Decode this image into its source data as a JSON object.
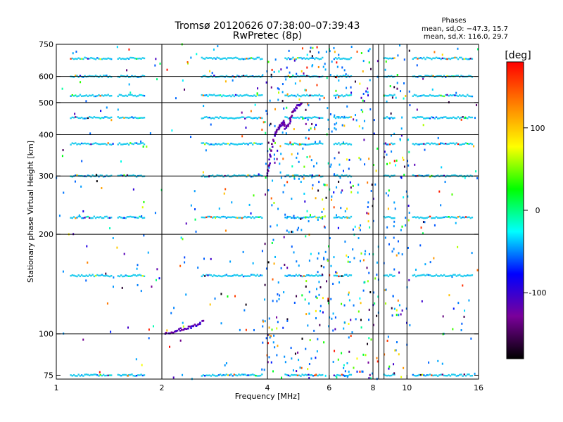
{
  "chart_data": {
    "type": "scatter",
    "title": "Tromsø 20120626 07:38:00–07:39:43",
    "subtitle": "RwPretec (8p)",
    "xlabel": "Frequency [MHz]",
    "ylabel": "Stationary phase Virtual Height [km]",
    "x_scale": "log",
    "y_scale": "log",
    "xlim": [
      1,
      16
    ],
    "ylim": [
      73,
      750
    ],
    "x_ticks": [
      1,
      2,
      4,
      6,
      8,
      10,
      16
    ],
    "y_ticks": [
      75,
      100,
      200,
      300,
      400,
      500,
      600,
      750
    ],
    "x_grid": [
      2,
      4,
      6,
      8,
      10
    ],
    "y_grid": [
      100,
      200,
      300,
      400,
      500,
      600
    ],
    "grid": true,
    "excluded_band_mhz": [
      8.3,
      8.6
    ],
    "phases_legend": {
      "heading": "Phases",
      "line_o": "mean, sd,O: −47.3, 15.7",
      "line_x": "mean, sd,X: 116.0, 29.7"
    },
    "colorbar": {
      "label": "[deg]",
      "range": [
        -180,
        180
      ],
      "ticks": [
        100,
        0,
        -100
      ],
      "colors": [
        "#000000",
        "#7a009a",
        "#0000ff",
        "#00ffff",
        "#00ff00",
        "#ffff00",
        "#ff8000",
        "#ff0000"
      ]
    },
    "dominant_phase_color": "#22ccee",
    "heavy_rows_km": [
      680,
      600,
      525,
      450,
      375,
      300,
      225,
      150,
      75
    ],
    "heavy_row_bands_mhz": [
      [
        1.1,
        1.45
      ],
      [
        1.5,
        1.8
      ],
      [
        2.6,
        3.9
      ],
      [
        4.5,
        5.8
      ],
      [
        6.2,
        7.0
      ],
      [
        8.6,
        9.3
      ],
      [
        10.4,
        15.5
      ]
    ],
    "o_trace": {
      "phase_deg": -110,
      "x_mhz": [
        2.05,
        2.15,
        2.25,
        2.35,
        2.45,
        2.55,
        2.65
      ],
      "y_km": [
        101,
        101.5,
        103,
        104,
        105,
        107,
        110
      ]
    },
    "f_trace": {
      "phase_deg": -120,
      "x_mhz": [
        4.0,
        4.05,
        4.1,
        4.2,
        4.3,
        4.4,
        4.45,
        4.5,
        4.6,
        4.7,
        4.8,
        4.9,
        5.0
      ],
      "y_km": [
        300,
        330,
        360,
        400,
        420,
        430,
        440,
        420,
        430,
        460,
        480,
        490,
        500
      ]
    }
  }
}
